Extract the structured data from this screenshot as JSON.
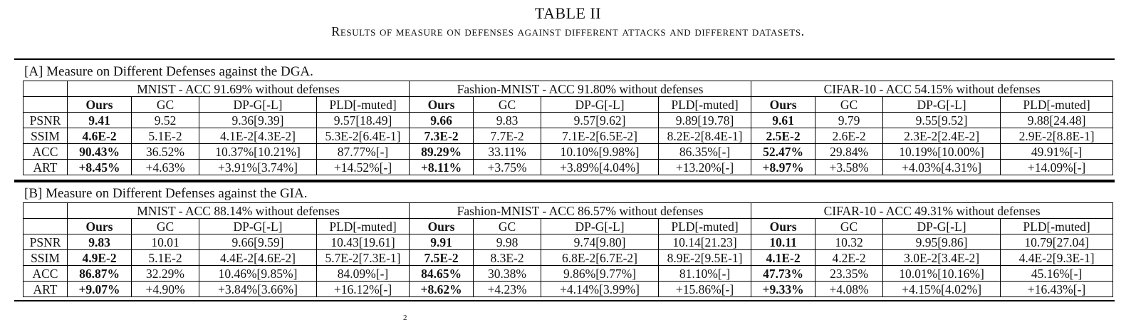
{
  "title": "TABLE II",
  "subtitle": "Results of measure on defenses against different attacks and different datasets.",
  "columns": [
    "Ours",
    "GC",
    "DP-G[-L]",
    "PLD[-muted]"
  ],
  "sections": [
    {
      "id": "A",
      "title": "[A] Measure on Different Defenses against the DGA.",
      "datasets": [
        "MNIST - ACC 91.69% without defenses",
        "Fashion-MNIST - ACC 91.80% without defenses",
        "CIFAR-10 - ACC 54.15% without defenses"
      ],
      "rows": [
        {
          "metric": "PSNR",
          "cells": [
            "9.41",
            "9.52",
            "9.36[9.39]",
            "9.57[18.49]",
            "9.66",
            "9.83",
            "9.57[9.62]",
            "9.89[19.78]",
            "9.61",
            "9.79",
            "9.55[9.52]",
            "9.88[24.48]"
          ]
        },
        {
          "metric": "SSIM",
          "cells": [
            "4.6E-2",
            "5.1E-2",
            "4.1E-2[4.3E-2]",
            "5.3E-2[6.4E-1]",
            "7.3E-2",
            "7.7E-2",
            "7.1E-2[6.5E-2]",
            "8.2E-2[8.4E-1]",
            "2.5E-2",
            "2.6E-2",
            "2.3E-2[2.4E-2]",
            "2.9E-2[8.8E-1]"
          ]
        },
        {
          "metric": "ACC",
          "cells": [
            "90.43%",
            "36.52%",
            "10.37%[10.21%]",
            "87.77%[-]",
            "89.29%",
            "33.11%",
            "10.10%[9.98%]",
            "86.35%[-]",
            "52.47%",
            "29.84%",
            "10.19%[10.00%]",
            "49.91%[-]"
          ]
        },
        {
          "metric": "ART",
          "cells": [
            "+8.45%",
            "+4.63%",
            "+3.91%[3.74%]",
            "+14.52%[-]",
            "+8.11%",
            "+3.75%",
            "+3.89%[4.04%]",
            "+13.20%[-]",
            "+8.97%",
            "+3.58%",
            "+4.03%[4.31%]",
            "+14.09%[-]"
          ]
        }
      ]
    },
    {
      "id": "B",
      "title": "[B] Measure on Different Defenses against the GIA.",
      "datasets": [
        "MNIST - ACC 88.14% without defenses",
        "Fashion-MNIST - ACC 86.57% without defenses",
        "CIFAR-10 - ACC 49.31% without defenses"
      ],
      "rows": [
        {
          "metric": "PSNR",
          "cells": [
            "9.83",
            "10.01",
            "9.66[9.59]",
            "10.43[19.61]",
            "9.91",
            "9.98",
            "9.74[9.80]",
            "10.14[21.23]",
            "10.11",
            "10.32",
            "9.95[9.86]",
            "10.79[27.04]"
          ]
        },
        {
          "metric": "SSIM",
          "cells": [
            "4.9E-2",
            "5.1E-2",
            "4.4E-2[4.6E-2]",
            "5.7E-2[7.3E-1]",
            "7.5E-2",
            "8.3E-2",
            "6.8E-2[6.7E-2]",
            "8.9E-2[9.5E-1]",
            "4.1E-2",
            "4.2E-2",
            "3.0E-2[3.4E-2]",
            "4.4E-2[9.3E-1]"
          ]
        },
        {
          "metric": "ACC",
          "cells": [
            "86.87%",
            "32.29%",
            "10.46%[9.85%]",
            "84.09%[-]",
            "84.65%",
            "30.38%",
            "9.86%[9.77%]",
            "81.10%[-]",
            "47.73%",
            "23.35%",
            "10.01%[10.16%]",
            "45.16%[-]"
          ]
        },
        {
          "metric": "ART",
          "cells": [
            "+9.07%",
            "+4.90%",
            "+3.84%[3.66%]",
            "+16.12%[-]",
            "+8.62%",
            "+4.23%",
            "+4.14%[3.99%]",
            "+15.86%[-]",
            "+9.33%",
            "+4.08%",
            "+4.15%[4.02%]",
            "+16.43%[-]"
          ]
        }
      ]
    }
  ],
  "page_mark": "2"
}
